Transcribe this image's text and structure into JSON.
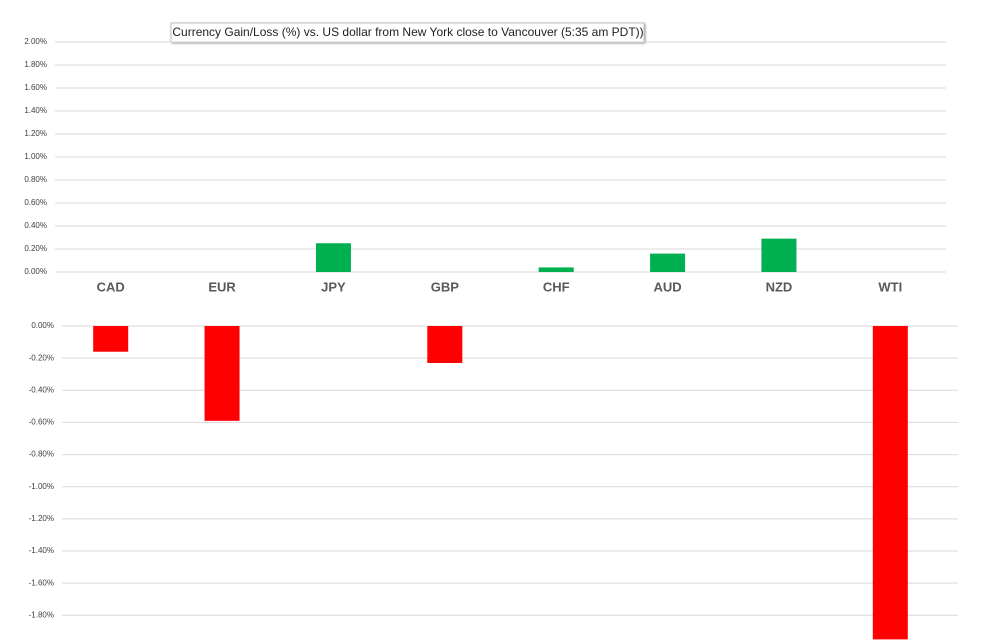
{
  "chart_data": [
    {
      "type": "bar",
      "title": "Currency  Gain/Loss (%) vs. US dollar  from New York close  to  Vancouver (5:35 am PDT))",
      "categories": [
        "CAD",
        "EUR",
        "JPY",
        "GBP",
        "CHF",
        "AUD",
        "NZD",
        "WTI"
      ],
      "values": [
        null,
        null,
        0.25,
        null,
        0.04,
        0.16,
        0.29,
        null
      ],
      "color": "#00b050",
      "ylim": [
        0,
        2
      ],
      "yticks": [
        {
          "value": 0,
          "label": "0.00%"
        },
        {
          "value": 0.2,
          "label": "0.20%"
        },
        {
          "value": 0.4,
          "label": "0.40%"
        },
        {
          "value": 0.6,
          "label": "0.60%"
        },
        {
          "value": 0.8,
          "label": "0.80%"
        },
        {
          "value": 1.0,
          "label": "1.00%"
        },
        {
          "value": 1.2,
          "label": "1.20%"
        },
        {
          "value": 1.4,
          "label": "1.40%"
        },
        {
          "value": 1.6,
          "label": "1.60%"
        },
        {
          "value": 1.8,
          "label": "1.80%"
        },
        {
          "value": 2.0,
          "label": "2.00%"
        }
      ],
      "grid": true
    },
    {
      "type": "bar",
      "values": [
        -0.16,
        -0.59,
        null,
        -0.23,
        null,
        null,
        null,
        -1.95
      ],
      "color": "#ff0000",
      "ylim": [
        -1.96,
        0
      ],
      "yticks": [
        {
          "value": 0,
          "label": "0.00%"
        },
        {
          "value": -0.2,
          "label": "-0.20%"
        },
        {
          "value": -0.4,
          "label": "-0.40%"
        },
        {
          "value": -0.6,
          "label": "-0.60%"
        },
        {
          "value": -0.8,
          "label": "-0.80%"
        },
        {
          "value": -1.0,
          "label": "-1.00%"
        },
        {
          "value": -1.2,
          "label": "-1.20%"
        },
        {
          "value": -1.4,
          "label": "-1.40%"
        },
        {
          "value": -1.6,
          "label": "-1.60%"
        },
        {
          "value": -1.8,
          "label": "-1.80%"
        }
      ],
      "grid": true
    }
  ]
}
